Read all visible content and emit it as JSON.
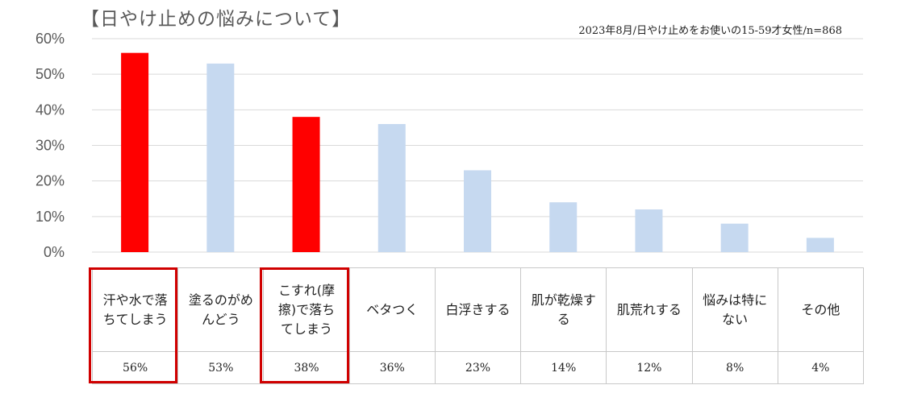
{
  "chart_data": {
    "type": "bar",
    "title": "【日やけ止めの悩みについて】",
    "subtitle": "2023年8月/日やけ止めをお使いの15-59才女性/n=868",
    "categories": [
      "汗や水で落ちてしまう",
      "塗るのがめんどう",
      "こすれ(摩擦)で落ちてしまう",
      "ベタつく",
      "白浮きする",
      "肌が乾燥する",
      "肌荒れする",
      "悩みは特にない",
      "その他"
    ],
    "values": [
      56,
      53,
      38,
      36,
      23,
      14,
      12,
      8,
      4
    ],
    "value_labels": [
      "56%",
      "53%",
      "38%",
      "36%",
      "23%",
      "14%",
      "12%",
      "8%",
      "4%"
    ],
    "y_ticks": [
      "0%",
      "10%",
      "20%",
      "30%",
      "40%",
      "50%",
      "60%"
    ],
    "ylim": [
      0,
      60
    ],
    "grid": true,
    "legend": "none",
    "highlighted_indices": [
      0,
      2
    ],
    "colors": {
      "highlight": "#ff0000",
      "normal": "#c6d9f0",
      "grid": "#d9d9d9",
      "box": "#d00000"
    }
  }
}
